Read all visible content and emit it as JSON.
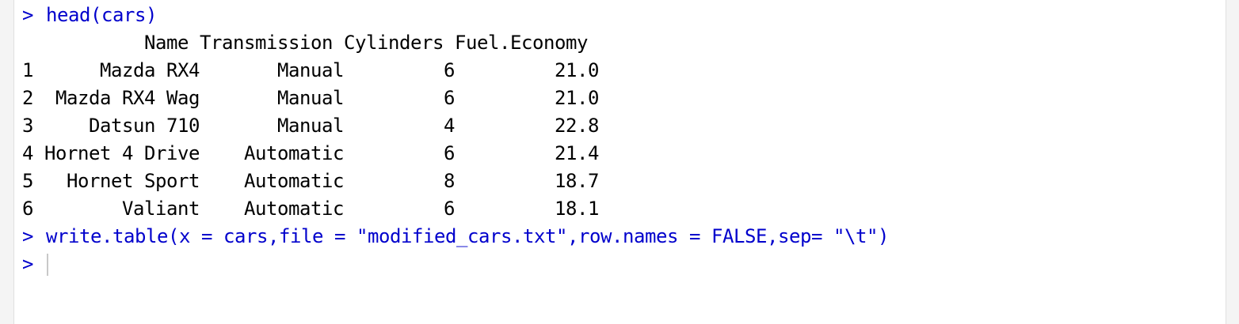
{
  "console": {
    "prompt": ">",
    "commands": {
      "head": "head(cars)",
      "write": "write.table(x = cars,file = \"modified_cars.txt\",row.names = FALSE,sep= \"\\t\")"
    },
    "output": {
      "header": "           Name Transmission Cylinders Fuel.Economy",
      "rows": [
        "1      Mazda RX4       Manual         6         21.0",
        "2  Mazda RX4 Wag       Manual         6         21.0",
        "3     Datsun 710       Manual         4         22.8",
        "4 Hornet 4 Drive    Automatic         6         21.4",
        "5   Hornet Sport    Automatic         8         18.7",
        "6        Valiant    Automatic         6         18.1"
      ]
    }
  }
}
